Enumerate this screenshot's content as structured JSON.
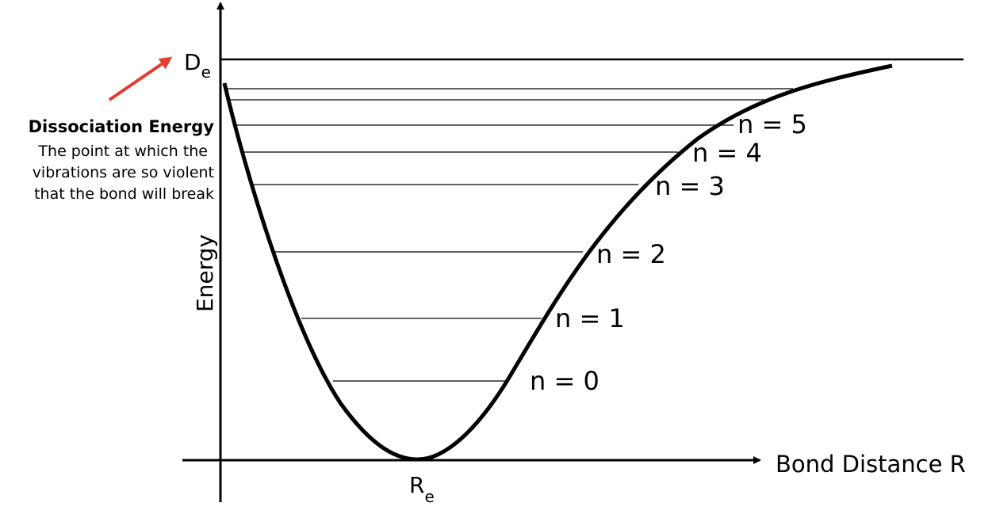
{
  "axes": {
    "y_label": "Energy",
    "x_label": "Bond Distance R"
  },
  "markers": {
    "equilibrium_distance": {
      "main": "R",
      "sub": "e"
    },
    "dissociation": {
      "main": "D",
      "sub": "e"
    }
  },
  "annotation": {
    "title": "Dissociation Energy",
    "lines": [
      "The point at which the",
      "vibrations are so violent",
      "that the bond will break"
    ]
  },
  "levels": [
    "n = 0",
    "n = 1",
    "n = 2",
    "n = 3",
    "n = 4",
    "n = 5"
  ]
}
